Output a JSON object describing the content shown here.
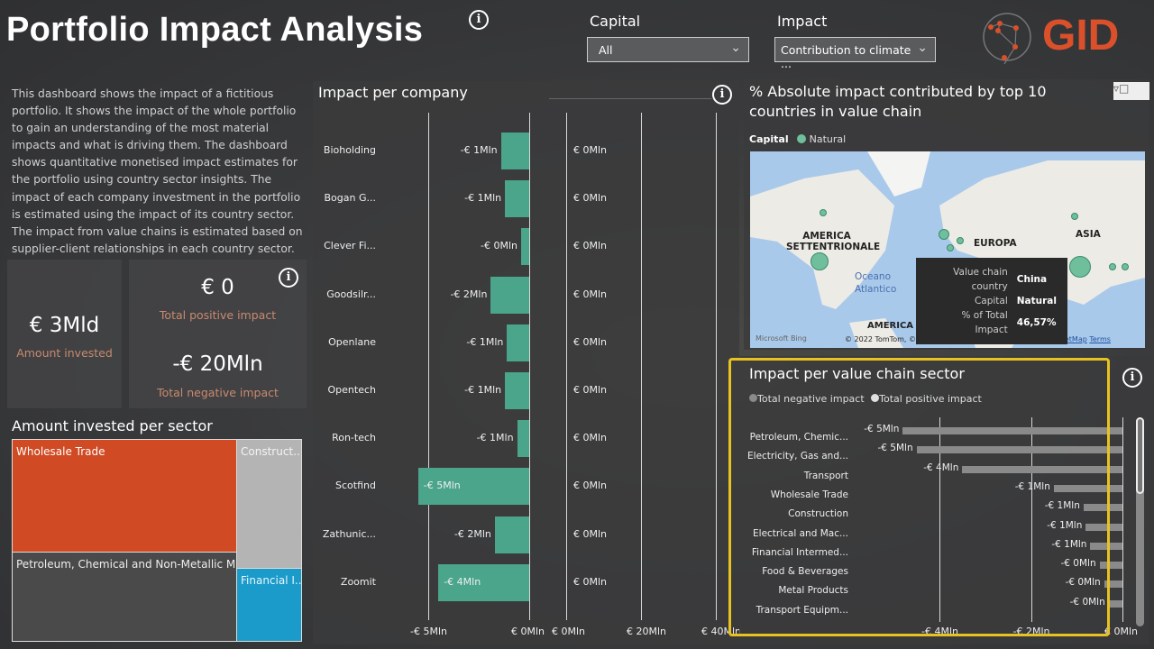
{
  "header": {
    "title": "Portfolio Impact Analysis",
    "info_icon": "info-icon"
  },
  "filters": {
    "capital_label": "Capital",
    "capital_value": "All",
    "impact_label": "Impact",
    "impact_value": "Contribution to climate ..."
  },
  "logo": {
    "text": "GID",
    "color": "#d9502b"
  },
  "description": "This dashboard shows the impact of a fictitious portfolio. It shows the impact of the whole portfolio to gain an understanding of the most material impacts and what is driving them. The dashboard shows quantitative monetised impact estimates for the portfolio using country sector insights. The impact of each company investment in the portfolio is estimated using the impact of its country sector. The impact from value chains is estimated based on supplier-client relationships in each country sector.",
  "kpis": {
    "amount_invested_value": "€ 3Mld",
    "amount_invested_label": "Amount invested",
    "positive_value": "€ 0",
    "positive_label": "Total positive impact",
    "negative_value": "-€ 20Mln",
    "negative_label": "Total negative impact"
  },
  "treemap": {
    "title": "Amount invested per sector",
    "items": [
      {
        "label": "Wholesale Trade",
        "color": "#d04a23"
      },
      {
        "label": "Petroleum, Chemical and Non-Metallic Min...",
        "color": "#4a4a4b"
      },
      {
        "label": "Construct...",
        "color": "#b4b4b4"
      },
      {
        "label": "Financial I...",
        "color": "#1a9bc9"
      }
    ]
  },
  "chart_data": [
    {
      "type": "bar",
      "title": "Impact per company",
      "orientation": "horizontal",
      "categories": [
        "Bioholding",
        "Bogan G...",
        "Clever Fi...",
        "Goodsilr...",
        "Openlane",
        "Opentech",
        "Ron-tech",
        "Scotfind",
        "Zathunic...",
        "Zoomit"
      ],
      "series": [
        {
          "values": [
            -1.4,
            -1.2,
            -0.4,
            -1.9,
            -1.1,
            -1.2,
            -0.6,
            -5.5,
            -1.7,
            -4.5
          ],
          "labels": [
            "-€ 1Mln",
            "-€ 1Mln",
            "-€ 0Mln",
            "-€ 2Mln",
            "-€ 1Mln",
            "-€ 1Mln",
            "-€ 1Mln",
            "-€ 5Mln",
            "-€ 2Mln",
            "-€ 4Mln"
          ],
          "color": "#4aa58a"
        },
        {
          "values": [
            0,
            0,
            0,
            0,
            0,
            0,
            0,
            0,
            0,
            0
          ],
          "labels": [
            "€ 0Mln",
            "€ 0Mln",
            "€ 0Mln",
            "€ 0Mln",
            "€ 0Mln",
            "€ 0Mln",
            "€ 0Mln",
            "€ 0Mln",
            "€ 0Mln",
            "€ 0Mln"
          ],
          "color": "#4aa58a"
        }
      ],
      "neg_axis": {
        "range": [
          -5,
          0
        ],
        "ticks": [
          -5,
          0
        ],
        "tick_labels": [
          "-€ 5Mln",
          "€ 0Mln"
        ]
      },
      "pos_axis": {
        "range": [
          0,
          40
        ],
        "ticks": [
          0,
          20,
          40
        ],
        "tick_labels": [
          "€ 0Mln",
          "€ 20Mln",
          "€ 40Mln"
        ]
      },
      "grid": true
    },
    {
      "type": "bar",
      "title": "Impact per value chain sector",
      "orientation": "horizontal",
      "legend": [
        {
          "name": "Total negative impact",
          "color": "#8a8a8a"
        },
        {
          "name": "Total positive impact",
          "color": "#e0e0e0"
        }
      ],
      "legend_position": "top-left",
      "categories": [
        "Petroleum, Chemic...",
        "Electricity, Gas and...",
        "Transport",
        "Wholesale Trade",
        "Construction",
        "Electrical and Mac...",
        "Financial Intermed...",
        "Food & Beverages",
        "Metal Products",
        "Transport Equipm..."
      ],
      "series": [
        {
          "name": "Total negative impact",
          "values": [
            -4.8,
            -4.5,
            -3.5,
            -1.5,
            -0.85,
            -0.8,
            -0.7,
            -0.5,
            -0.4,
            -0.3
          ],
          "labels": [
            "-€ 5Mln",
            "-€ 5Mln",
            "-€ 4Mln",
            "-€ 1Mln",
            "-€ 1Mln",
            "-€ 1Mln",
            "-€ 1Mln",
            "-€ 0Mln",
            "-€ 0Mln",
            "-€ 0Mln"
          ],
          "color": "#8a8a8a"
        }
      ],
      "xlim": [
        -5,
        0
      ],
      "ticks": [
        -4,
        -2,
        0
      ],
      "tick_labels": [
        "-€ 4Mln",
        "-€ 2Mln",
        "€ 0Mln"
      ],
      "grid": true
    }
  ],
  "map": {
    "title": "% Absolute impact contributed by top 10 countries in value chain",
    "legend_label": "Capital",
    "legend_item": "Natural",
    "legend_color": "#6fbf9c",
    "region_labels": [
      "AMERICA SETTENTRIONALE",
      "EUROPA",
      "ASIA",
      "Oceano Atlantico",
      "AMERICA MERIDIONALE"
    ],
    "attribution": "© 2022 TomTom, © 2022 Microsoft Corporation,",
    "osm": "© OpenStreetMap",
    "terms": "Terms",
    "bing": "Microsoft Bing",
    "tooltip": {
      "rows": [
        {
          "k": "Value chain country",
          "v": "China"
        },
        {
          "k": "Capital",
          "v": "Natural"
        },
        {
          "k": "% of Total Impact",
          "v": "46,57%"
        }
      ]
    }
  }
}
